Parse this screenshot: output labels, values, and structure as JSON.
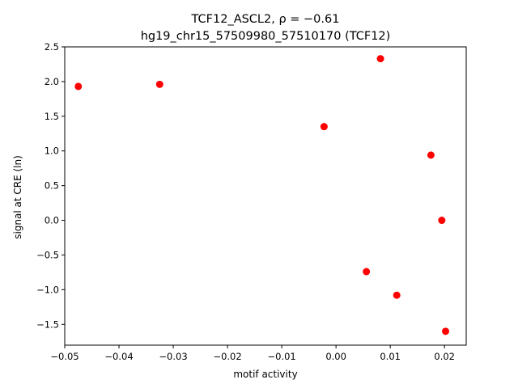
{
  "chart_data": {
    "type": "scatter",
    "title_line1": "TCF12_ASCL2, ρ = −0.61",
    "title_line2": "hg19_chr15_57509980_57510170 (TCF12)",
    "xlabel": "motif activity",
    "ylabel": "signal at CRE (ln)",
    "xlim": [
      -0.05,
      0.024
    ],
    "ylim": [
      -1.8,
      2.5
    ],
    "xticks": [
      -0.05,
      -0.04,
      -0.03,
      -0.02,
      -0.01,
      0.0,
      0.01,
      0.02
    ],
    "xtick_labels": [
      "−0.05",
      "−0.04",
      "−0.03",
      "−0.02",
      "−0.01",
      "0.00",
      "0.01",
      "0.02"
    ],
    "yticks": [
      2.5,
      2.0,
      1.5,
      1.0,
      0.5,
      0.0,
      -0.5,
      -1.0,
      -1.5
    ],
    "ytick_labels": [
      "2.5",
      "2.0",
      "1.5",
      "1.0",
      "0.5",
      "0.0",
      "−0.5",
      "−1.0",
      "−1.5"
    ],
    "grid": false,
    "marker_color": "#ff0000",
    "points": [
      {
        "x": -0.0475,
        "y": 1.93
      },
      {
        "x": -0.0325,
        "y": 1.96
      },
      {
        "x": -0.0022,
        "y": 1.35
      },
      {
        "x": 0.0082,
        "y": 2.33
      },
      {
        "x": 0.0175,
        "y": 0.94
      },
      {
        "x": 0.0195,
        "y": 0.0
      },
      {
        "x": 0.0056,
        "y": -0.74
      },
      {
        "x": 0.0112,
        "y": -1.08
      },
      {
        "x": 0.0202,
        "y": -1.6
      }
    ]
  }
}
